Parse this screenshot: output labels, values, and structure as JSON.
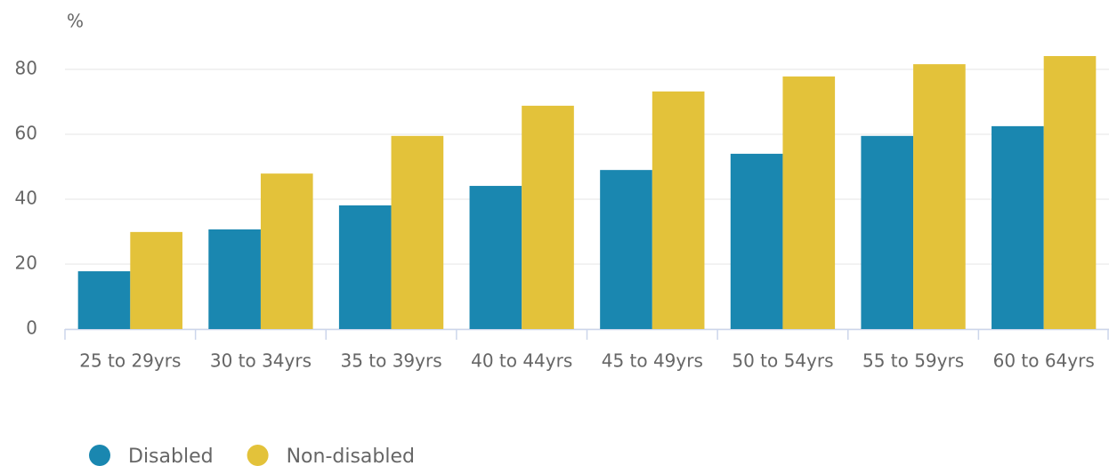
{
  "chart_data": {
    "type": "bar",
    "y_label": "%",
    "categories": [
      "25 to 29yrs",
      "30 to 34yrs",
      "35 to 39yrs",
      "40 to 44yrs",
      "45 to 49yrs",
      "50 to 54yrs",
      "55 to 59yrs",
      "60 to 64yrs"
    ],
    "series": [
      {
        "name": "Disabled",
        "color": "#1a87b0",
        "values": [
          17.8,
          30.7,
          38.1,
          44.1,
          49.0,
          54.0,
          59.5,
          62.5
        ]
      },
      {
        "name": "Non-disabled",
        "color": "#e3c23a",
        "values": [
          29.9,
          47.9,
          59.5,
          68.8,
          73.2,
          77.8,
          81.6,
          84.1
        ]
      }
    ],
    "ylim": [
      0,
      90
    ],
    "yticks": [
      0,
      20,
      40,
      60,
      80
    ],
    "grid": true,
    "legend": "bottom-left"
  }
}
